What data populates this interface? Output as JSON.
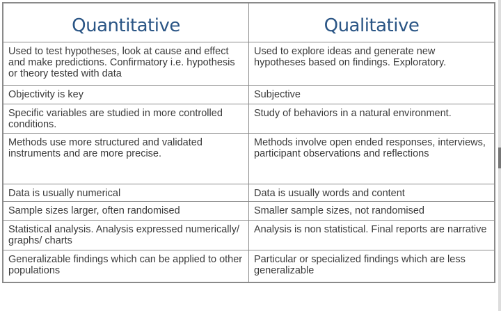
{
  "headers": [
    "Quantitative",
    "Qualitative"
  ],
  "rows": [
    [
      "Used to test hypotheses, look at cause and effect and make predictions. Confirmatory i.e. hypothesis or theory tested with data",
      "Used to explore ideas and generate new hypotheses based on findings. Exploratory."
    ],
    [
      "Objectivity is key",
      "Subjective"
    ],
    [
      "Specific variables are studied in more controlled conditions.",
      "Study of behaviors in a natural environment."
    ],
    [
      "Methods use more structured and validated instruments and are more precise.",
      "Methods involve open ended responses, interviews, participant observations and reflections"
    ],
    [
      "Data is usually numerical",
      "Data is usually words and content"
    ],
    [
      "Sample sizes larger, often randomised",
      "Smaller sample sizes, not randomised"
    ],
    [
      "Statistical analysis. Analysis expressed numerically/ graphs/ charts",
      "Analysis is non statistical. Final reports are narrative"
    ],
    [
      "Generalizable findings which can be applied to other populations",
      "Particular or specialized findings which are less generalizable"
    ]
  ]
}
